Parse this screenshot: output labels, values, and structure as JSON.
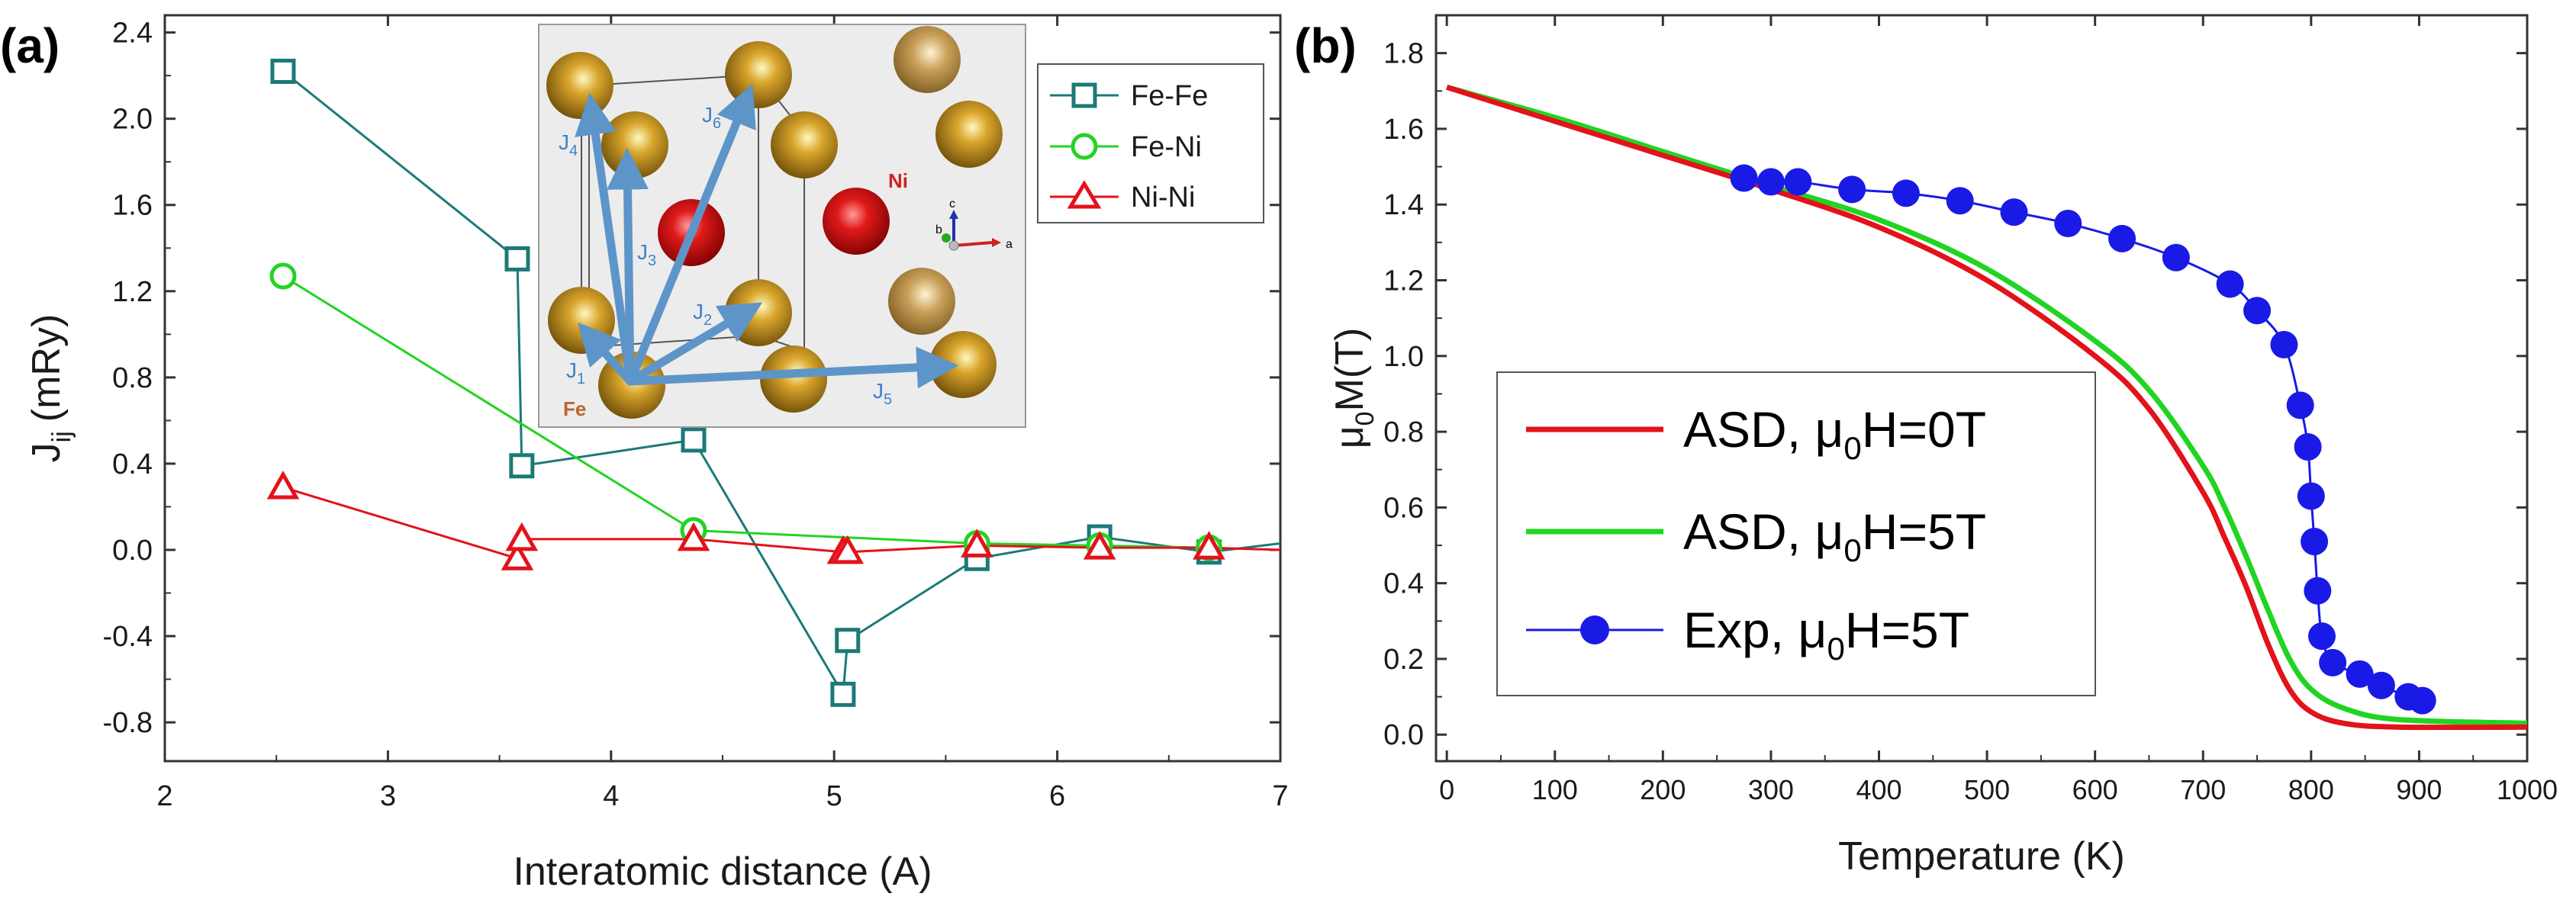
{
  "panel_a": {
    "label": "(a)",
    "chart_data": {
      "type": "line",
      "xlabel": "Interatomic distance (A)",
      "ylabel": "J",
      "ylabel_sub": "ij",
      "ylabel_unit": "(mRy)",
      "xlim": [
        2,
        7
      ],
      "ylim": [
        -0.98,
        2.48
      ],
      "xticks": [
        "2",
        "3",
        "4",
        "5",
        "6",
        "7"
      ],
      "yticks": [
        "2.4",
        "2.0",
        "1.6",
        "1.2",
        "0.8",
        "0.4",
        "0.0",
        "-0.4",
        "-0.8"
      ],
      "series": [
        {
          "name": "Fe-Fe",
          "marker": "square",
          "x": [
            2.53,
            3.58,
            3.6,
            4.37,
            5.04,
            5.06,
            5.64,
            6.19,
            6.68,
            7.0
          ],
          "y": [
            2.22,
            1.35,
            0.39,
            0.51,
            -0.67,
            -0.42,
            -0.04,
            0.06,
            -0.01,
            0.03
          ]
        },
        {
          "name": "Fe-Ni",
          "marker": "circle",
          "x": [
            2.53,
            4.37,
            5.64,
            6.19,
            6.68
          ],
          "y": [
            1.27,
            0.09,
            0.03,
            0.02,
            0.01
          ]
        },
        {
          "name": "Ni-Ni",
          "marker": "triangle",
          "x": [
            2.53,
            3.58,
            3.6,
            4.37,
            5.04,
            5.06,
            5.64,
            6.19,
            6.68,
            7.0
          ],
          "y": [
            0.29,
            -0.04,
            0.05,
            0.05,
            -0.01,
            -0.01,
            0.02,
            0.01,
            0.01,
            0.0
          ]
        }
      ]
    },
    "inset": {
      "j_labels": [
        "J",
        "J",
        "J",
        "J",
        "J",
        "J"
      ],
      "j_subs": [
        "1",
        "2",
        "3",
        "4",
        "5",
        "6"
      ],
      "fe": "Fe",
      "ni": "Ni",
      "axes": [
        "a",
        "b",
        "c"
      ]
    }
  },
  "panel_b": {
    "label": "(b)",
    "chart_data": {
      "type": "line",
      "xlabel": "Temperature (K)",
      "ylabel_pre": "μ",
      "ylabel_sub": "0",
      "ylabel_post": "M(T)",
      "xlim": [
        -10,
        1000
      ],
      "ylim": [
        -0.07,
        1.9
      ],
      "xticks": [
        "0",
        "100",
        "200",
        "300",
        "400",
        "500",
        "600",
        "700",
        "800",
        "900",
        "1000"
      ],
      "yticks": [
        "1.8",
        "1.6",
        "1.4",
        "1.2",
        "1.0",
        "0.8",
        "0.6",
        "0.4",
        "0.2",
        "0.0"
      ],
      "series": [
        {
          "name": "ASD, μ0H=0T",
          "legend_pre": "ASD, μ",
          "legend_sub": "0",
          "legend_post": "H=0T",
          "x": [
            0,
            100,
            200,
            300,
            400,
            500,
            600,
            650,
            700,
            720,
            740,
            760,
            780,
            800,
            830,
            880,
            1000
          ],
          "y": [
            1.71,
            1.62,
            1.53,
            1.44,
            1.34,
            1.2,
            1.0,
            0.86,
            0.64,
            0.52,
            0.39,
            0.24,
            0.12,
            0.06,
            0.03,
            0.02,
            0.02
          ]
        },
        {
          "name": "ASD, μ0H=5T",
          "legend_pre": "ASD, μ",
          "legend_sub": "0",
          "legend_post": "H=5T",
          "x": [
            0,
            100,
            200,
            300,
            400,
            500,
            600,
            650,
            700,
            720,
            740,
            760,
            780,
            800,
            830,
            880,
            1000
          ],
          "y": [
            1.71,
            1.63,
            1.54,
            1.45,
            1.36,
            1.23,
            1.04,
            0.91,
            0.71,
            0.6,
            0.47,
            0.33,
            0.2,
            0.12,
            0.07,
            0.04,
            0.03
          ]
        },
        {
          "name": "Exp, μ0H=5T",
          "legend_pre": "Exp, μ",
          "legend_sub": "0",
          "legend_post": "H=5T",
          "x": [
            275,
            300,
            325,
            375,
            425,
            475,
            525,
            575,
            625,
            675,
            725,
            750,
            775,
            790,
            797,
            800,
            803,
            806,
            810,
            820,
            845,
            865,
            890,
            903
          ],
          "y": [
            1.47,
            1.46,
            1.46,
            1.44,
            1.43,
            1.41,
            1.38,
            1.35,
            1.31,
            1.26,
            1.19,
            1.12,
            1.03,
            0.87,
            0.76,
            0.63,
            0.51,
            0.38,
            0.26,
            0.19,
            0.16,
            0.13,
            0.1,
            0.09
          ]
        }
      ]
    }
  },
  "colors": {
    "fefe": "#1b7a78",
    "feni": "#22d422",
    "nini": "#e3121b",
    "asd0": "#e3121b",
    "asd5": "#22d422",
    "exp": "#1a1ae6",
    "arrow": "#5d95c9",
    "fe_atom": "#b8860b",
    "ni_atom": "#d41c1c"
  }
}
